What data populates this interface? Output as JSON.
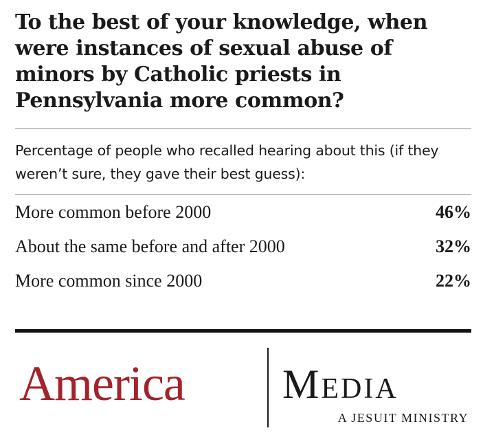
{
  "title": "To the best of your knowledge, when were instances of sexual abuse of minors by Catholic priests in Pennsylvania more common?",
  "subtitle": "Percentage of people who recalled hearing about this (if they weren’t sure, they gave their best guess):",
  "chart_data": {
    "type": "table",
    "title": "To the best of your knowledge, when were instances of sexual abuse of minors by Catholic priests in Pennsylvania more common?",
    "subtitle": "Percentage of people who recalled hearing about this (if they weren’t sure, they gave their best guess):",
    "categories": [
      "More common before 2000",
      "About the same before and after 2000",
      "More common since 2000"
    ],
    "values": [
      46,
      32,
      22
    ],
    "value_labels": [
      "46%",
      "32%",
      "22%"
    ],
    "unit": "%"
  },
  "logo": {
    "brand": "America",
    "media": "Media",
    "tagline": "A JESUIT MINISTRY",
    "brand_color": "#a3232c",
    "text_color": "#1a1a1a"
  }
}
